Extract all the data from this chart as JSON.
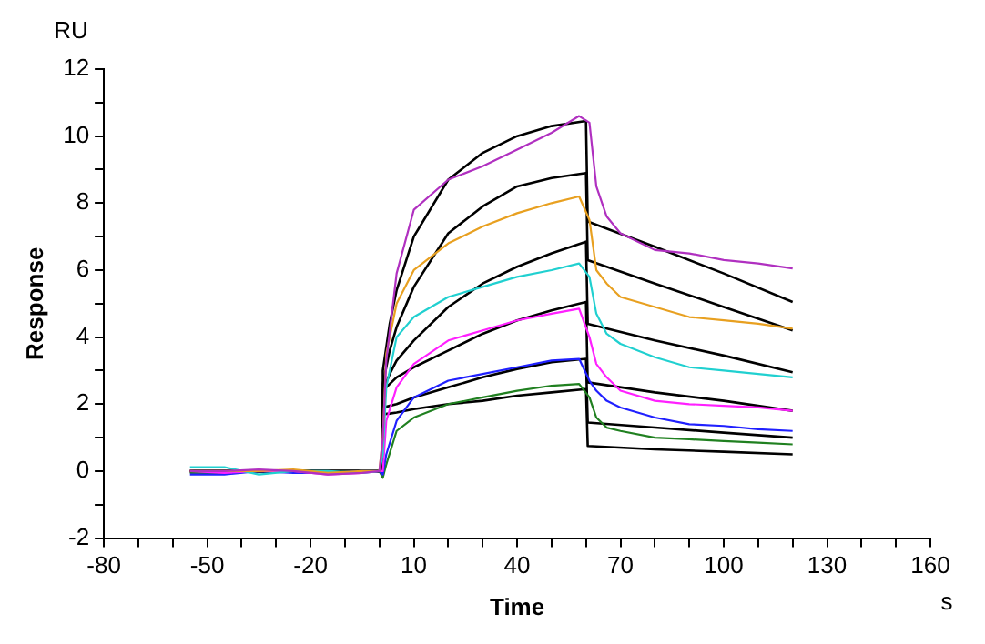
{
  "chart_data": {
    "type": "line",
    "xlabel": "Time",
    "ylabel": "Response",
    "annotations": [
      "RU",
      "s"
    ],
    "xlim": [
      -80,
      160
    ],
    "ylim": [
      -2,
      12
    ],
    "xticks": [
      -80,
      {
        "value": -70,
        "label": null
      },
      {
        "value": -60,
        "label": null
      },
      -50,
      {
        "value": -40,
        "label": null
      },
      {
        "value": -30,
        "label": null
      },
      -20,
      {
        "value": -10,
        "label": null
      },
      {
        "value": 0,
        "label": null
      },
      10,
      {
        "value": 20,
        "label": null
      },
      {
        "value": 30,
        "label": null
      },
      40,
      {
        "value": 50,
        "label": null
      },
      {
        "value": 60,
        "label": null
      },
      70,
      {
        "value": 80,
        "label": null
      },
      {
        "value": 90,
        "label": null
      },
      100,
      {
        "value": 110,
        "label": null
      },
      {
        "value": 120,
        "label": null
      },
      130,
      {
        "value": 140,
        "label": null
      },
      {
        "value": 150,
        "label": null
      },
      160
    ],
    "yticks": [
      -2,
      {
        "value": -1,
        "label": null
      },
      0,
      {
        "value": 1,
        "label": null
      },
      2,
      {
        "value": 3,
        "label": null
      },
      4,
      {
        "value": 5,
        "label": null
      },
      6,
      {
        "value": 7,
        "label": null
      },
      8,
      {
        "value": 9,
        "label": null
      },
      10,
      {
        "value": 11,
        "label": null
      },
      12
    ],
    "series": [
      {
        "color": "#b030c0",
        "x": [
          -55,
          -45,
          -35,
          -25,
          -15,
          -5,
          0,
          1,
          2,
          5,
          10,
          20,
          30,
          40,
          50,
          58,
          61,
          63,
          66,
          70,
          80,
          90,
          100,
          110,
          120
        ],
        "values": [
          0,
          0,
          0.05,
          0,
          -0.1,
          -0.05,
          0,
          1.0,
          3.3,
          5.9,
          7.8,
          8.7,
          9.1,
          9.6,
          10.1,
          10.6,
          10.4,
          8.5,
          7.6,
          7.1,
          6.6,
          6.5,
          6.3,
          6.2,
          6.05
        ]
      },
      {
        "color": "#e8a020",
        "x": [
          -55,
          -45,
          -35,
          -25,
          -15,
          -5,
          0,
          1,
          2,
          5,
          10,
          20,
          30,
          40,
          50,
          58,
          61,
          63,
          66,
          70,
          80,
          90,
          100,
          110,
          120
        ],
        "values": [
          0,
          0,
          0,
          0.05,
          -0.05,
          0,
          0,
          1.0,
          3.5,
          5.0,
          6.0,
          6.8,
          7.3,
          7.7,
          8.0,
          8.2,
          7.5,
          6.0,
          5.6,
          5.2,
          4.9,
          4.6,
          4.5,
          4.4,
          4.25
        ]
      },
      {
        "color": "#20d0d0",
        "x": [
          -55,
          -45,
          -35,
          -25,
          -15,
          -5,
          0,
          1,
          2,
          5,
          10,
          20,
          30,
          40,
          50,
          58,
          61,
          63,
          66,
          70,
          80,
          90,
          100,
          110,
          120
        ],
        "values": [
          0.12,
          0.12,
          -0.1,
          0,
          0,
          -0.05,
          0,
          0.5,
          2.5,
          4.0,
          4.6,
          5.2,
          5.5,
          5.8,
          6.0,
          6.2,
          5.8,
          4.7,
          4.1,
          3.8,
          3.4,
          3.1,
          3.0,
          2.9,
          2.8
        ]
      },
      {
        "color": "#ff20ff",
        "x": [
          -55,
          -45,
          -35,
          -25,
          -15,
          -5,
          0,
          1,
          2,
          5,
          10,
          20,
          30,
          40,
          50,
          58,
          61,
          63,
          66,
          70,
          80,
          90,
          100,
          110,
          120
        ],
        "values": [
          0,
          -0.05,
          0,
          0,
          -0.1,
          -0.05,
          0,
          0,
          1.5,
          2.5,
          3.2,
          3.9,
          4.2,
          4.5,
          4.7,
          4.85,
          4.0,
          3.2,
          2.8,
          2.4,
          2.1,
          2.0,
          1.95,
          1.9,
          1.8
        ]
      },
      {
        "color": "#2020ff",
        "x": [
          -55,
          -45,
          -35,
          -25,
          -15,
          -5,
          0,
          1,
          2,
          5,
          10,
          20,
          30,
          40,
          50,
          58,
          61,
          63,
          66,
          70,
          80,
          90,
          100,
          110,
          120
        ],
        "values": [
          -0.1,
          -0.1,
          0,
          -0.05,
          -0.05,
          0,
          0,
          -0.1,
          0.5,
          1.5,
          2.2,
          2.7,
          2.9,
          3.1,
          3.3,
          3.35,
          2.7,
          2.4,
          2.1,
          1.9,
          1.6,
          1.4,
          1.35,
          1.25,
          1.2
        ]
      },
      {
        "color": "#208020",
        "x": [
          -55,
          -45,
          -35,
          -25,
          -15,
          -5,
          0,
          1,
          2,
          5,
          10,
          20,
          30,
          40,
          50,
          58,
          61,
          63,
          66,
          70,
          80,
          90,
          100,
          110,
          120
        ],
        "values": [
          -0.05,
          -0.05,
          0,
          0,
          -0.05,
          0,
          0,
          -0.2,
          0.2,
          1.2,
          1.6,
          2.0,
          2.2,
          2.4,
          2.55,
          2.6,
          2.2,
          1.6,
          1.3,
          1.2,
          1.0,
          0.95,
          0.9,
          0.85,
          0.8
        ]
      },
      {
        "color": "#000000",
        "x": [
          -55,
          0.9,
          1,
          3,
          5,
          10,
          20,
          30,
          40,
          50,
          60,
          60.5,
          80,
          100,
          120
        ],
        "values": [
          0,
          0,
          3.0,
          4.4,
          5.4,
          7.0,
          8.7,
          9.5,
          10.0,
          10.3,
          10.45,
          7.45,
          6.7,
          5.9,
          5.05
        ]
      },
      {
        "color": "#000000",
        "x": [
          -55,
          0.9,
          1,
          3,
          5,
          10,
          20,
          30,
          40,
          50,
          60,
          60.5,
          80,
          100,
          120
        ],
        "values": [
          0,
          0,
          2.6,
          3.6,
          4.3,
          5.5,
          7.1,
          7.9,
          8.5,
          8.75,
          8.9,
          6.3,
          5.6,
          4.9,
          4.2
        ]
      },
      {
        "color": "#000000",
        "x": [
          -55,
          0.9,
          1,
          3,
          5,
          10,
          20,
          30,
          40,
          50,
          60,
          60.5,
          80,
          100,
          120
        ],
        "values": [
          0,
          0,
          2.4,
          2.9,
          3.3,
          3.9,
          4.9,
          5.6,
          6.1,
          6.5,
          6.85,
          4.4,
          3.9,
          3.45,
          2.95
        ]
      },
      {
        "color": "#000000",
        "x": [
          -55,
          0.9,
          1,
          3,
          5,
          10,
          20,
          30,
          40,
          50,
          60,
          60.5,
          80,
          100,
          120
        ],
        "values": [
          0,
          0,
          2.4,
          2.6,
          2.8,
          3.1,
          3.6,
          4.1,
          4.5,
          4.8,
          5.05,
          2.65,
          2.35,
          2.1,
          1.8
        ]
      },
      {
        "color": "#000000",
        "x": [
          -55,
          0.9,
          1,
          3,
          5,
          10,
          20,
          30,
          40,
          50,
          60,
          60.5,
          80,
          100,
          120
        ],
        "values": [
          0,
          0,
          1.9,
          1.95,
          2.0,
          2.2,
          2.5,
          2.8,
          3.05,
          3.25,
          3.35,
          1.45,
          1.3,
          1.15,
          1.0
        ]
      },
      {
        "color": "#000000",
        "x": [
          -55,
          0.9,
          1,
          3,
          5,
          10,
          20,
          30,
          40,
          50,
          60,
          60.5,
          80,
          100,
          120
        ],
        "values": [
          0,
          0,
          1.7,
          1.72,
          1.75,
          1.85,
          2.0,
          2.1,
          2.25,
          2.35,
          2.45,
          0.75,
          0.65,
          0.58,
          0.5
        ]
      }
    ]
  }
}
